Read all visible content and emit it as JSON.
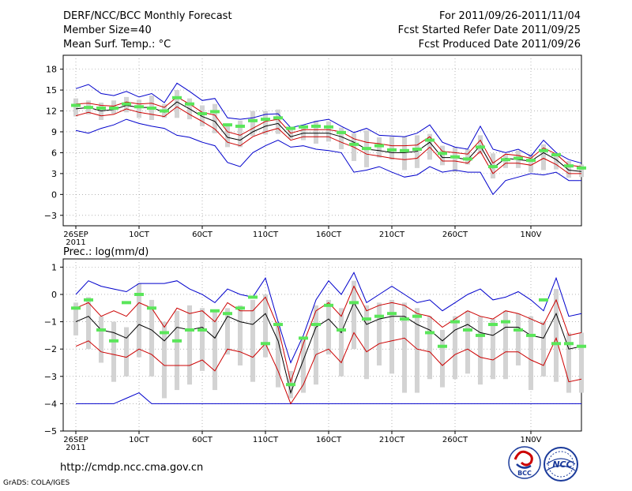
{
  "header": {
    "title_left": "DERF/NCC/BCC Monthly Forecast",
    "member_size": "Member Size=40",
    "variable": "Mean Surf. Temp.: °C",
    "period": "For 2011/09/26-2011/11/04",
    "started": "Fcst Started Refer Date 2011/09/25",
    "produced": "Fcst Produced Date 2011/09/26"
  },
  "footer": {
    "url": "http://cmdp.ncc.cma.gov.cn",
    "grads": "GrADS: COLA/IGES",
    "logo_bcc": "BCC",
    "logo_ncc": "NCC"
  },
  "colors": {
    "box": "#d3d3d3",
    "max_min": "#0000cc",
    "percentile": "#cc0000",
    "median": "#000000",
    "mean_marker": "#5ae65a",
    "grid": "#888888"
  },
  "chart_data": [
    {
      "type": "line",
      "title": "Mean Surf. Temp.: °C",
      "xlabel": "",
      "ylabel": "°C",
      "ylim": [
        -4.5,
        20
      ],
      "yticks": [
        -3,
        0,
        3,
        6,
        9,
        12,
        15,
        18
      ],
      "x_ticks": [
        {
          "day": 0,
          "label": "26SEP",
          "sublabel": "2011"
        },
        {
          "day": 5,
          "label": "10CT"
        },
        {
          "day": 10,
          "label": "60CT"
        },
        {
          "day": 15,
          "label": "110CT"
        },
        {
          "day": 20,
          "label": "160CT"
        },
        {
          "day": 25,
          "label": "210CT"
        },
        {
          "day": 30,
          "label": "260CT"
        },
        {
          "day": 36,
          "label": "1N0V"
        }
      ],
      "x_range": [
        -1,
        40
      ],
      "series": [
        {
          "name": "max",
          "values": [
            15.2,
            15.8,
            14.5,
            14.2,
            14.8,
            14.0,
            14.5,
            13.2,
            16.0,
            14.8,
            13.5,
            13.8,
            11.0,
            10.8,
            11.0,
            11.5,
            11.6,
            9.6,
            10.0,
            10.5,
            10.8,
            9.8,
            8.9,
            9.5,
            8.5,
            8.4,
            8.3,
            8.8,
            10.0,
            7.5,
            6.8,
            6.5,
            9.8,
            6.5,
            6.0,
            6.5,
            5.5,
            7.8,
            6.0,
            5.0,
            4.5
          ]
        },
        {
          "name": "p90",
          "values": [
            13.0,
            13.1,
            12.8,
            12.7,
            13.3,
            13.0,
            13.1,
            12.5,
            14.0,
            13.0,
            11.8,
            11.4,
            9.0,
            8.5,
            9.5,
            10.5,
            10.8,
            8.8,
            9.3,
            9.3,
            9.3,
            9.0,
            8.0,
            7.5,
            7.3,
            7.0,
            7.0,
            7.1,
            8.3,
            6.2,
            6.0,
            5.8,
            7.8,
            4.5,
            5.8,
            5.6,
            5.2,
            6.7,
            5.8,
            4.2,
            4.0
          ]
        },
        {
          "name": "median",
          "values": [
            12.3,
            12.5,
            12.0,
            12.2,
            12.8,
            12.5,
            12.5,
            11.8,
            13.3,
            12.3,
            11.2,
            10.5,
            8.2,
            7.8,
            9.0,
            9.8,
            10.2,
            8.3,
            8.8,
            8.8,
            8.8,
            8.3,
            7.5,
            6.5,
            6.3,
            6.0,
            6.0,
            6.2,
            7.5,
            5.3,
            5.3,
            5.0,
            7.0,
            3.8,
            5.2,
            5.0,
            4.8,
            6.0,
            5.0,
            3.5,
            3.3
          ]
        },
        {
          "name": "p10",
          "values": [
            11.3,
            11.8,
            11.3,
            11.5,
            12.3,
            11.8,
            11.5,
            11.2,
            12.6,
            11.5,
            10.5,
            9.4,
            7.5,
            7.0,
            8.3,
            9.0,
            9.5,
            7.8,
            8.3,
            8.3,
            8.3,
            7.5,
            6.8,
            5.8,
            5.5,
            5.2,
            5.0,
            5.2,
            6.8,
            4.8,
            4.8,
            4.5,
            6.2,
            3.0,
            4.5,
            4.5,
            4.2,
            5.2,
            4.3,
            3.0,
            3.0
          ]
        },
        {
          "name": "min",
          "values": [
            9.2,
            8.8,
            9.5,
            10.0,
            10.8,
            10.2,
            9.8,
            9.5,
            8.5,
            8.2,
            7.5,
            7.0,
            4.6,
            4.0,
            6.0,
            7.0,
            7.8,
            6.8,
            7.0,
            6.5,
            6.3,
            6.0,
            3.2,
            3.5,
            4.0,
            3.2,
            2.5,
            2.8,
            4.0,
            3.2,
            3.5,
            3.2,
            3.2,
            0.0,
            2.0,
            2.5,
            3.0,
            2.8,
            3.2,
            2.0,
            2.0
          ]
        },
        {
          "name": "mean_marker",
          "values": [
            12.8,
            12.5,
            12.4,
            12.4,
            13.0,
            12.6,
            12.4,
            12.0,
            13.9,
            13.0,
            11.6,
            11.9,
            10.0,
            9.8,
            10.6,
            10.8,
            11.0,
            9.5,
            9.7,
            9.8,
            9.7,
            8.9,
            7.2,
            6.6,
            7.0,
            6.4,
            6.3,
            6.5,
            7.8,
            5.9,
            5.4,
            5.1,
            6.8,
            4.0,
            5.0,
            5.2,
            4.9,
            6.3,
            5.7,
            4.1,
            3.8
          ]
        },
        {
          "name": "box_high",
          "values": [
            13.8,
            13.5,
            13.2,
            13.5,
            14.0,
            13.6,
            14.2,
            13.0,
            15.0,
            13.8,
            12.8,
            13.0,
            10.2,
            10.6,
            12.0,
            12.0,
            12.2,
            9.4,
            10.0,
            10.6,
            10.5,
            9.6,
            8.8,
            9.2,
            8.2,
            8.3,
            8.3,
            8.5,
            8.7,
            7.0,
            6.8,
            6.5,
            8.5,
            5.9,
            5.7,
            6.3,
            5.8,
            7.2,
            5.9,
            4.8,
            4.3
          ]
        },
        {
          "name": "box_low",
          "values": [
            11.2,
            11.5,
            10.7,
            11.6,
            11.8,
            11.0,
            10.7,
            11.0,
            11.0,
            10.8,
            9.8,
            8.8,
            6.8,
            6.8,
            8.4,
            8.6,
            8.7,
            8.0,
            7.8,
            7.3,
            7.6,
            6.5,
            4.8,
            3.9,
            5.3,
            5.0,
            3.5,
            3.8,
            5.0,
            4.2,
            3.2,
            4.3,
            5.8,
            2.3,
            3.8,
            3.8,
            3.2,
            3.5,
            3.6,
            2.4,
            2.5
          ]
        }
      ]
    },
    {
      "type": "line",
      "title": "Prec.: log(mm/d)",
      "xlabel": "",
      "ylabel": "log(mm/d)",
      "ylim": [
        -5,
        1.3
      ],
      "yticks": [
        -5,
        -4,
        -3,
        -2,
        -1,
        0,
        1
      ],
      "x_ticks": [
        {
          "day": 0,
          "label": "26SEP",
          "sublabel": "2011"
        },
        {
          "day": 5,
          "label": "10CT"
        },
        {
          "day": 10,
          "label": "60CT"
        },
        {
          "day": 15,
          "label": "110CT"
        },
        {
          "day": 20,
          "label": "160CT"
        },
        {
          "day": 25,
          "label": "210CT"
        },
        {
          "day": 30,
          "label": "260CT"
        },
        {
          "day": 36,
          "label": "1N0V"
        }
      ],
      "x_range": [
        -1,
        40
      ],
      "series": [
        {
          "name": "max",
          "values": [
            0.0,
            0.5,
            0.3,
            0.2,
            0.1,
            0.4,
            0.4,
            0.4,
            0.5,
            0.2,
            0.0,
            -0.3,
            0.2,
            0.0,
            -0.1,
            0.6,
            -1.0,
            -2.5,
            -1.5,
            -0.2,
            0.5,
            0.0,
            0.8,
            -0.3,
            0.0,
            0.3,
            0.0,
            -0.3,
            -0.2,
            -0.6,
            -0.3,
            0.0,
            0.2,
            -0.2,
            -0.1,
            0.1,
            -0.2,
            -0.6,
            0.6,
            -0.8,
            -0.7
          ]
        },
        {
          "name": "p90",
          "values": [
            -0.5,
            -0.3,
            -0.8,
            -0.6,
            -0.8,
            -0.3,
            -0.5,
            -1.2,
            -0.5,
            -0.7,
            -0.6,
            -1.0,
            -0.3,
            -0.6,
            -0.6,
            -0.1,
            -1.2,
            -3.2,
            -1.8,
            -0.6,
            -0.3,
            -0.8,
            0.3,
            -0.6,
            -0.4,
            -0.3,
            -0.4,
            -0.7,
            -0.8,
            -1.2,
            -0.9,
            -0.6,
            -0.8,
            -0.9,
            -0.6,
            -0.7,
            -0.9,
            -1.1,
            -0.2,
            -1.5,
            -1.4
          ]
        },
        {
          "name": "median",
          "values": [
            -1.0,
            -0.8,
            -1.3,
            -1.4,
            -1.6,
            -1.1,
            -1.3,
            -1.7,
            -1.2,
            -1.3,
            -1.2,
            -1.6,
            -0.8,
            -1.0,
            -1.1,
            -0.7,
            -1.7,
            -3.6,
            -2.4,
            -1.2,
            -0.9,
            -1.4,
            -0.3,
            -1.1,
            -0.9,
            -0.8,
            -0.8,
            -1.1,
            -1.3,
            -1.7,
            -1.3,
            -1.1,
            -1.4,
            -1.5,
            -1.2,
            -1.2,
            -1.5,
            -1.6,
            -0.7,
            -2.0,
            -1.9
          ]
        },
        {
          "name": "p10",
          "values": [
            -1.9,
            -1.7,
            -2.1,
            -2.2,
            -2.3,
            -2.0,
            -2.2,
            -2.6,
            -2.6,
            -2.6,
            -2.4,
            -2.8,
            -2.0,
            -2.1,
            -2.3,
            -1.8,
            -2.8,
            -4.0,
            -3.3,
            -2.2,
            -2.0,
            -2.5,
            -1.4,
            -2.1,
            -1.8,
            -1.7,
            -1.6,
            -2.0,
            -2.1,
            -2.6,
            -2.2,
            -2.0,
            -2.3,
            -2.4,
            -2.1,
            -2.1,
            -2.4,
            -2.6,
            -1.6,
            -3.2,
            -3.1
          ]
        },
        {
          "name": "min",
          "values": [
            -4.0,
            -4.0,
            -4.0,
            -4.0,
            -3.8,
            -3.6,
            -4.0,
            -4.0,
            -4.0,
            -4.0,
            -4.0,
            -4.0,
            -4.0,
            -4.0,
            -4.0,
            -4.0,
            -4.0,
            -4.0,
            -4.0,
            -4.0,
            -4.0,
            -4.0,
            -4.0,
            -4.0,
            -4.0,
            -4.0,
            -4.0,
            -4.0,
            -4.0,
            -4.0,
            -4.0,
            -4.0,
            -4.0,
            -4.0,
            -4.0,
            -4.0,
            -4.0,
            -4.0,
            -4.0,
            -4.0,
            -4.0
          ]
        },
        {
          "name": "mean_marker",
          "values": [
            -0.5,
            -0.2,
            -1.3,
            -1.7,
            -0.3,
            0.0,
            -0.5,
            -1.4,
            -1.7,
            -1.3,
            -1.3,
            -0.6,
            -0.7,
            -0.5,
            -0.1,
            -1.8,
            -1.1,
            -3.3,
            -1.6,
            -1.1,
            -0.4,
            -1.3,
            -0.3,
            -0.9,
            -0.8,
            -0.7,
            -0.9,
            -0.8,
            -1.4,
            -1.9,
            -1.0,
            -1.3,
            -1.5,
            -1.1,
            -1.0,
            -1.3,
            -1.5,
            -0.2,
            -1.8,
            -1.8,
            -1.9
          ]
        },
        {
          "name": "box_high",
          "values": [
            -0.3,
            -0.1,
            -0.8,
            -1.0,
            -1.2,
            0.4,
            -0.2,
            -1.0,
            -0.6,
            -0.4,
            -0.5,
            -0.6,
            -0.5,
            -0.4,
            -0.2,
            0.0,
            -1.0,
            -2.8,
            -1.6,
            -0.4,
            -0.2,
            -0.5,
            0.5,
            -0.4,
            -0.3,
            -0.2,
            -0.3,
            -0.5,
            -0.8,
            -1.3,
            -0.8,
            -0.6,
            -0.8,
            -0.9,
            -0.6,
            -0.7,
            -0.8,
            -1.0,
            0.2,
            -1.4,
            -1.4
          ]
        },
        {
          "name": "box_low",
          "values": [
            -1.5,
            -2.0,
            -2.5,
            -3.2,
            -3.0,
            -2.3,
            -3.0,
            -3.8,
            -3.5,
            -3.3,
            -2.8,
            -3.5,
            -2.2,
            -2.6,
            -3.2,
            -2.3,
            -3.4,
            -3.8,
            -3.6,
            -3.3,
            -2.2,
            -3.0,
            -2.0,
            -3.1,
            -2.6,
            -2.9,
            -3.6,
            -3.6,
            -3.1,
            -3.4,
            -3.1,
            -2.9,
            -3.3,
            -3.1,
            -3.1,
            -2.6,
            -3.5,
            -3.0,
            -3.2,
            -3.6,
            -3.6
          ]
        }
      ]
    }
  ]
}
